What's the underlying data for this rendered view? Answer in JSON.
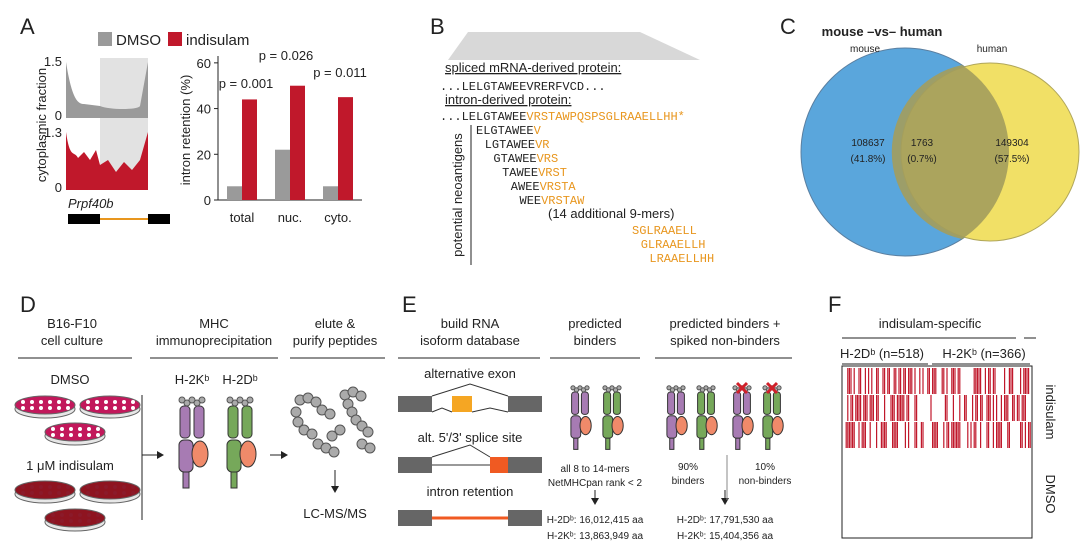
{
  "panel_a": {
    "letter": "A",
    "tracks": {
      "y_label": "cytoplasmic fraction",
      "top_max": "1.5",
      "top_zero": "0",
      "bottom_max": "1.3",
      "bottom_zero": "0",
      "gene": "Prpf40b"
    },
    "chart": {
      "type": "bar",
      "y_label": "intron retention (%)",
      "categories": [
        "total",
        "nuc.",
        "cyto."
      ],
      "series": [
        {
          "name": "DMSO",
          "color": "#9a9a9a",
          "values": [
            6,
            22,
            6
          ]
        },
        {
          "name": "indisulam",
          "color": "#c0182b",
          "values": [
            44,
            50,
            45
          ]
        }
      ],
      "ylim": [
        0,
        63
      ],
      "yticks": [
        0,
        20,
        40,
        60
      ],
      "annotations": [
        "p = 0.001",
        "p = 0.026",
        "p = 0.011"
      ]
    }
  },
  "panel_b": {
    "letter": "B",
    "spliced_label": "spliced mRNA-derived protein:",
    "spliced_seq": "...LELGTAWEEVRERFVCD...",
    "intron_label": "intron-derived protein:",
    "intron_seq": [
      "...LELGTAWEE",
      "VRSTAWPQSPSGLRAAELLHH*"
    ],
    "side_label": "potential neoantigens",
    "neoantigens": [
      [
        "ELGTAWEE",
        "V"
      ],
      [
        "LGTAWEE",
        "VR"
      ],
      [
        "GTAWEE",
        "VRS"
      ],
      [
        "TAWEE",
        "VRST"
      ],
      [
        "AWEE",
        "VRSTA"
      ],
      [
        "WEE",
        "VRSTAW"
      ]
    ],
    "more": "(14 additional 9-mers)",
    "tail": [
      "SGLRAAELL",
      "GLRAAELLH",
      "LRAAELLHH"
    ]
  },
  "panel_c": {
    "letter": "C",
    "title": "mouse –vs– human",
    "left": "mouse",
    "right": "human",
    "left_count": "108637",
    "left_pct": "(41.8%)",
    "mid_count": "1763",
    "mid_pct": "(0.7%)",
    "right_count": "149304",
    "right_pct": "(57.5%)"
  },
  "panel_d": {
    "letter": "D",
    "headers": [
      [
        "B16-F10",
        "cell culture"
      ],
      [
        "MHC",
        "immunoprecipitation"
      ],
      [
        "elute &",
        "purify peptides"
      ]
    ],
    "conditions": [
      "DMSO",
      "1 μM indisulam"
    ],
    "alleles": [
      "H-2Kᵇ",
      "H-2Dᵇ"
    ],
    "output": "LC-MS/MS"
  },
  "panel_e": {
    "letter": "E",
    "headers": [
      [
        "build RNA",
        "isoform database"
      ],
      [
        "predicted",
        "binders"
      ],
      [
        "predicted binders +",
        "spiked non-binders"
      ]
    ],
    "events": [
      "alternative exon",
      "alt. 5'/3' splice site",
      "intron retention"
    ],
    "criteria": [
      "all 8 to 14-mers",
      "NetMHCpan rank < 2"
    ],
    "mix": [
      [
        "90%",
        "binders"
      ],
      [
        "10%",
        "non-binders"
      ]
    ],
    "sizes_predicted": [
      "H-2Dᵇ: 16,012,415 aa",
      "H-2Kᵇ: 13,863,949 aa"
    ],
    "sizes_spiked": [
      "H-2Dᵇ: 17,791,530 aa",
      "H-2Kᵇ: 15,404,356 aa"
    ]
  },
  "panel_f": {
    "letter": "F",
    "title": "indisulam-specific",
    "groups": [
      "H-2Dᵇ (n=518)",
      "H-2Kᵇ (n=366)"
    ],
    "rows": [
      "indisulam",
      "DMSO"
    ]
  }
}
